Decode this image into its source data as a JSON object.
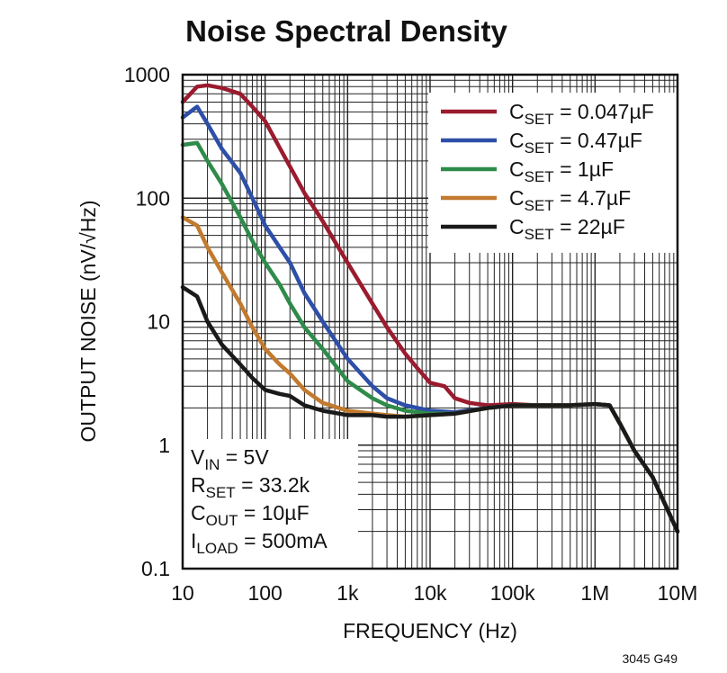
{
  "chart_data": {
    "type": "line",
    "title": "Noise Spectral Density",
    "xlabel": "FREQUENCY (Hz)",
    "ylabel": "OUTPUT NOISE (nV/√Hz)",
    "x_scale": "log",
    "y_scale": "log",
    "xlim": [
      10,
      10000000
    ],
    "ylim": [
      0.1,
      1000
    ],
    "grid": true,
    "legend_position": "top-right",
    "xticks": [
      {
        "value": 10,
        "label": "10"
      },
      {
        "value": 100,
        "label": "100"
      },
      {
        "value": 1000,
        "label": "1k"
      },
      {
        "value": 10000,
        "label": "10k"
      },
      {
        "value": 100000,
        "label": "100k"
      },
      {
        "value": 1000000,
        "label": "1M"
      },
      {
        "value": 10000000,
        "label": "10M"
      }
    ],
    "yticks": [
      {
        "value": 1000,
        "label": "1000"
      },
      {
        "value": 100,
        "label": "100"
      },
      {
        "value": 10,
        "label": "10"
      },
      {
        "value": 1,
        "label": "1"
      },
      {
        "value": 0.1,
        "label": "0.1"
      }
    ],
    "series": [
      {
        "name_main": "C",
        "name_sub": "SET",
        "name_rest": " = 0.047µF",
        "color": "#9b1b2e",
        "x": [
          10,
          15,
          20,
          30,
          50,
          70,
          100,
          200,
          300,
          500,
          1000,
          2000,
          3000,
          5000,
          7000,
          10000,
          15000,
          20000,
          30000,
          50000,
          100000,
          200000,
          500000,
          1000000,
          1500000,
          2000000,
          3000000,
          5000000,
          10000000
        ],
        "y": [
          600,
          800,
          820,
          780,
          700,
          550,
          420,
          180,
          110,
          65,
          30,
          14,
          9,
          5.5,
          4.2,
          3.2,
          3.0,
          2.4,
          2.2,
          2.1,
          2.15,
          2.1,
          2.1,
          2.15,
          2.1,
          1.5,
          0.9,
          0.55,
          0.2
        ]
      },
      {
        "name_main": "C",
        "name_sub": "SET",
        "name_rest": " = 0.47µF",
        "color": "#2e4fa8",
        "x": [
          10,
          15,
          20,
          30,
          50,
          70,
          100,
          150,
          200,
          300,
          500,
          1000,
          2000,
          3000,
          5000,
          10000,
          20000,
          50000,
          100000,
          200000,
          500000,
          1000000,
          1500000,
          2000000,
          3000000,
          5000000,
          10000000
        ],
        "y": [
          450,
          550,
          400,
          250,
          160,
          100,
          60,
          40,
          30,
          17,
          10,
          5,
          3,
          2.4,
          2.1,
          1.9,
          1.85,
          2.0,
          2.1,
          2.1,
          2.1,
          2.15,
          2.1,
          1.5,
          0.9,
          0.55,
          0.2
        ]
      },
      {
        "name_main": "C",
        "name_sub": "SET",
        "name_rest": " = 1µF",
        "color": "#2e8b4a",
        "x": [
          10,
          15,
          20,
          30,
          50,
          70,
          100,
          150,
          200,
          300,
          500,
          1000,
          2000,
          3000,
          5000,
          10000,
          20000,
          50000,
          100000,
          200000,
          500000,
          1000000,
          1500000,
          2000000,
          3000000,
          5000000,
          10000000
        ],
        "y": [
          270,
          280,
          200,
          130,
          70,
          45,
          30,
          20,
          14,
          9,
          6,
          3.3,
          2.4,
          2.1,
          1.9,
          1.8,
          1.8,
          2.0,
          2.1,
          2.1,
          2.1,
          2.15,
          2.1,
          1.5,
          0.9,
          0.55,
          0.2
        ]
      },
      {
        "name_main": "C",
        "name_sub": "SET",
        "name_rest": " = 4.7µF",
        "color": "#c17a2e",
        "x": [
          10,
          15,
          20,
          30,
          50,
          70,
          100,
          150,
          200,
          300,
          500,
          1000,
          2000,
          3000,
          5000,
          10000,
          20000,
          50000,
          100000,
          200000,
          500000,
          1000000,
          1500000,
          2000000,
          3000000,
          5000000,
          10000000
        ],
        "y": [
          70,
          60,
          40,
          25,
          14,
          9,
          6,
          4.5,
          3.8,
          2.8,
          2.2,
          1.9,
          1.8,
          1.75,
          1.7,
          1.75,
          1.8,
          2.0,
          2.1,
          2.1,
          2.1,
          2.15,
          2.1,
          1.5,
          0.9,
          0.55,
          0.2
        ]
      },
      {
        "name_main": "C",
        "name_sub": "SET",
        "name_rest": " = 22µF",
        "color": "#1a1a1a",
        "x": [
          10,
          15,
          20,
          30,
          50,
          70,
          100,
          150,
          200,
          300,
          500,
          1000,
          2000,
          3000,
          5000,
          10000,
          20000,
          50000,
          100000,
          200000,
          500000,
          1000000,
          1500000,
          2000000,
          3000000,
          5000000,
          10000000
        ],
        "y": [
          19,
          16,
          10,
          6.5,
          4.5,
          3.5,
          2.8,
          2.6,
          2.5,
          2.1,
          1.9,
          1.75,
          1.75,
          1.7,
          1.7,
          1.75,
          1.8,
          2.0,
          2.1,
          2.1,
          2.1,
          2.15,
          2.1,
          1.5,
          0.9,
          0.55,
          0.2
        ]
      }
    ],
    "conditions": [
      {
        "main": "V",
        "sub": "IN",
        "rest": " = 5V"
      },
      {
        "main": "R",
        "sub": "SET",
        "rest": " = 33.2k"
      },
      {
        "main": "C",
        "sub": "OUT",
        "rest": " = 10µF"
      },
      {
        "main": "I",
        "sub": "LOAD",
        "rest": " = 500mA"
      }
    ],
    "figure_code": "3045 G49"
  }
}
